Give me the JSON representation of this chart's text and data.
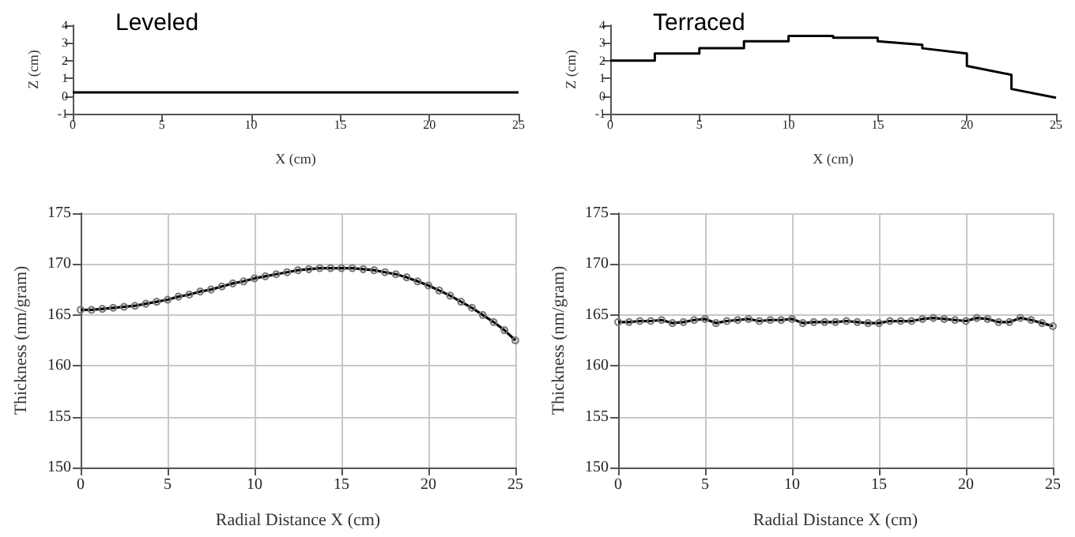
{
  "chart_data": [
    {
      "type": "line",
      "title": "Leveled",
      "xlabel": "X (cm)",
      "ylabel": "Z (cm)",
      "xlim": [
        0,
        25
      ],
      "xticks": [
        0,
        5,
        10,
        15,
        20,
        25
      ],
      "ylim": [
        -1,
        4
      ],
      "yticks": [
        -1,
        0,
        1,
        2,
        3,
        4
      ],
      "grid": false,
      "marker": "none",
      "series": [
        {
          "color": "#000000",
          "x": [
            0,
            2.5,
            5,
            7.5,
            10,
            12.5,
            15,
            17.5,
            20,
            22.5,
            25
          ],
          "values": [
            0.2,
            0.2,
            0.2,
            0.2,
            0.2,
            0.2,
            0.2,
            0.2,
            0.2,
            0.2,
            0.2
          ]
        }
      ]
    },
    {
      "type": "line",
      "title": "Terraced",
      "xlabel": "X (cm)",
      "ylabel": "Z (cm)",
      "xlim": [
        0,
        25
      ],
      "xticks": [
        0,
        5,
        10,
        15,
        20,
        25
      ],
      "ylim": [
        -1,
        4
      ],
      "yticks": [
        -1,
        0,
        1,
        2,
        3,
        4
      ],
      "grid": false,
      "marker": "none",
      "series": [
        {
          "color": "#000000",
          "x": [
            0,
            2.5,
            2.5,
            5,
            5,
            7.5,
            7.5,
            10,
            10,
            12.5,
            12.5,
            15,
            15,
            17.5,
            17.5,
            20,
            20,
            22.5,
            22.5,
            25
          ],
          "values": [
            2.0,
            2.0,
            2.4,
            2.4,
            2.7,
            2.7,
            3.1,
            3.1,
            3.4,
            3.4,
            3.3,
            3.3,
            3.1,
            2.9,
            2.7,
            2.4,
            1.7,
            1.2,
            0.4,
            -0.1
          ]
        }
      ]
    },
    {
      "type": "line",
      "xlabel": "Radial Distance X (cm)",
      "ylabel": "Thickness (nm/gram)",
      "xlim": [
        0,
        25
      ],
      "xticks": [
        0,
        5,
        10,
        15,
        20,
        25
      ],
      "ylim": [
        150,
        175
      ],
      "yticks": [
        150,
        155,
        160,
        165,
        170,
        175
      ],
      "grid": true,
      "marker": "circle",
      "series": [
        {
          "color": "#000000",
          "x": [
            0,
            0.625,
            1.25,
            1.875,
            2.5,
            3.125,
            3.75,
            4.375,
            5,
            5.625,
            6.25,
            6.875,
            7.5,
            8.125,
            8.75,
            9.375,
            10,
            10.625,
            11.25,
            11.875,
            12.5,
            13.125,
            13.75,
            14.375,
            15,
            15.625,
            16.25,
            16.875,
            17.5,
            18.125,
            18.75,
            19.375,
            20,
            20.625,
            21.25,
            21.875,
            22.5,
            23.125,
            23.75,
            24.375,
            25
          ],
          "values": [
            165.5,
            165.5,
            165.6,
            165.7,
            165.8,
            165.9,
            166.1,
            166.3,
            166.5,
            166.8,
            167.0,
            167.3,
            167.5,
            167.8,
            168.1,
            168.3,
            168.6,
            168.8,
            169.0,
            169.2,
            169.4,
            169.5,
            169.6,
            169.6,
            169.6,
            169.6,
            169.5,
            169.4,
            169.2,
            169.0,
            168.7,
            168.3,
            167.9,
            167.4,
            166.9,
            166.3,
            165.7,
            165.0,
            164.3,
            163.5,
            162.5
          ]
        }
      ]
    },
    {
      "type": "line",
      "xlabel": "Radial Distance X (cm)",
      "ylabel": "Thickness (nm/gram)",
      "xlim": [
        0,
        25
      ],
      "xticks": [
        0,
        5,
        10,
        15,
        20,
        25
      ],
      "ylim": [
        150,
        175
      ],
      "yticks": [
        150,
        155,
        160,
        165,
        170,
        175
      ],
      "grid": true,
      "marker": "circle",
      "series": [
        {
          "color": "#000000",
          "x": [
            0,
            0.625,
            1.25,
            1.875,
            2.5,
            3.125,
            3.75,
            4.375,
            5,
            5.625,
            6.25,
            6.875,
            7.5,
            8.125,
            8.75,
            9.375,
            10,
            10.625,
            11.25,
            11.875,
            12.5,
            13.125,
            13.75,
            14.375,
            15,
            15.625,
            16.25,
            16.875,
            17.5,
            18.125,
            18.75,
            19.375,
            20,
            20.625,
            21.25,
            21.875,
            22.5,
            23.125,
            23.75,
            24.375,
            25
          ],
          "values": [
            164.3,
            164.3,
            164.4,
            164.4,
            164.5,
            164.2,
            164.3,
            164.5,
            164.6,
            164.2,
            164.4,
            164.5,
            164.6,
            164.4,
            164.5,
            164.5,
            164.6,
            164.2,
            164.3,
            164.3,
            164.3,
            164.4,
            164.3,
            164.2,
            164.2,
            164.4,
            164.4,
            164.4,
            164.6,
            164.7,
            164.6,
            164.5,
            164.4,
            164.7,
            164.6,
            164.3,
            164.3,
            164.7,
            164.5,
            164.2,
            163.9
          ]
        }
      ]
    }
  ]
}
